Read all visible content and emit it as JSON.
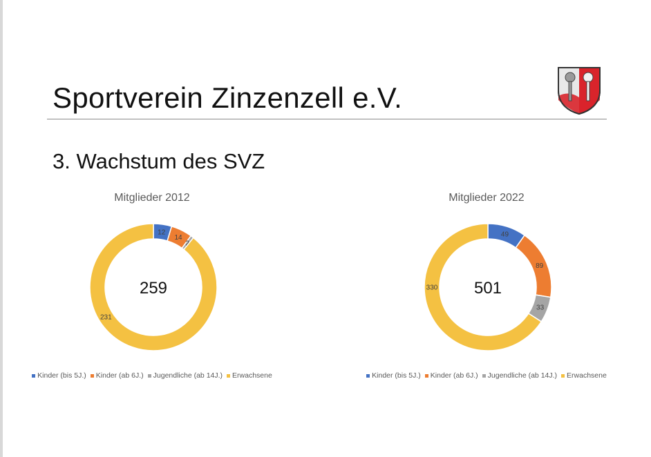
{
  "slide": {
    "org_title": "Sportverein Zinzenzell e.V.",
    "section_title": "3. Wachstum des SVZ"
  },
  "legend": [
    {
      "label": "Kinder (bis 5J.)",
      "color": "#4472c4"
    },
    {
      "label": "Kinder (ab 6J.)",
      "color": "#ed7d31"
    },
    {
      "label": "Jugendliche (ab 14J.)",
      "color": "#a5a5a5"
    },
    {
      "label": "Erwachsene",
      "color": "#f4c142"
    }
  ],
  "chart_data": [
    {
      "type": "pie",
      "variant": "doughnut",
      "title": "Mitglieder 2012",
      "center_label": "259",
      "categories": [
        "Kinder (bis 5J.)",
        "Kinder (ab 6J.)",
        "Jugendliche (ab 14J.)",
        "Erwachsene"
      ],
      "values": [
        12,
        14,
        2,
        231
      ],
      "colors": [
        "#4472c4",
        "#ed7d31",
        "#a5a5a5",
        "#f4c142"
      ],
      "legend_position": "bottom"
    },
    {
      "type": "pie",
      "variant": "doughnut",
      "title": "Mitglieder 2022",
      "center_label": "501",
      "categories": [
        "Kinder (bis 5J.)",
        "Kinder (ab 6J.)",
        "Jugendliche (ab 14J.)",
        "Erwachsene"
      ],
      "values": [
        49,
        89,
        33,
        330
      ],
      "colors": [
        "#4472c4",
        "#ed7d31",
        "#a5a5a5",
        "#f4c142"
      ],
      "legend_position": "bottom"
    }
  ]
}
